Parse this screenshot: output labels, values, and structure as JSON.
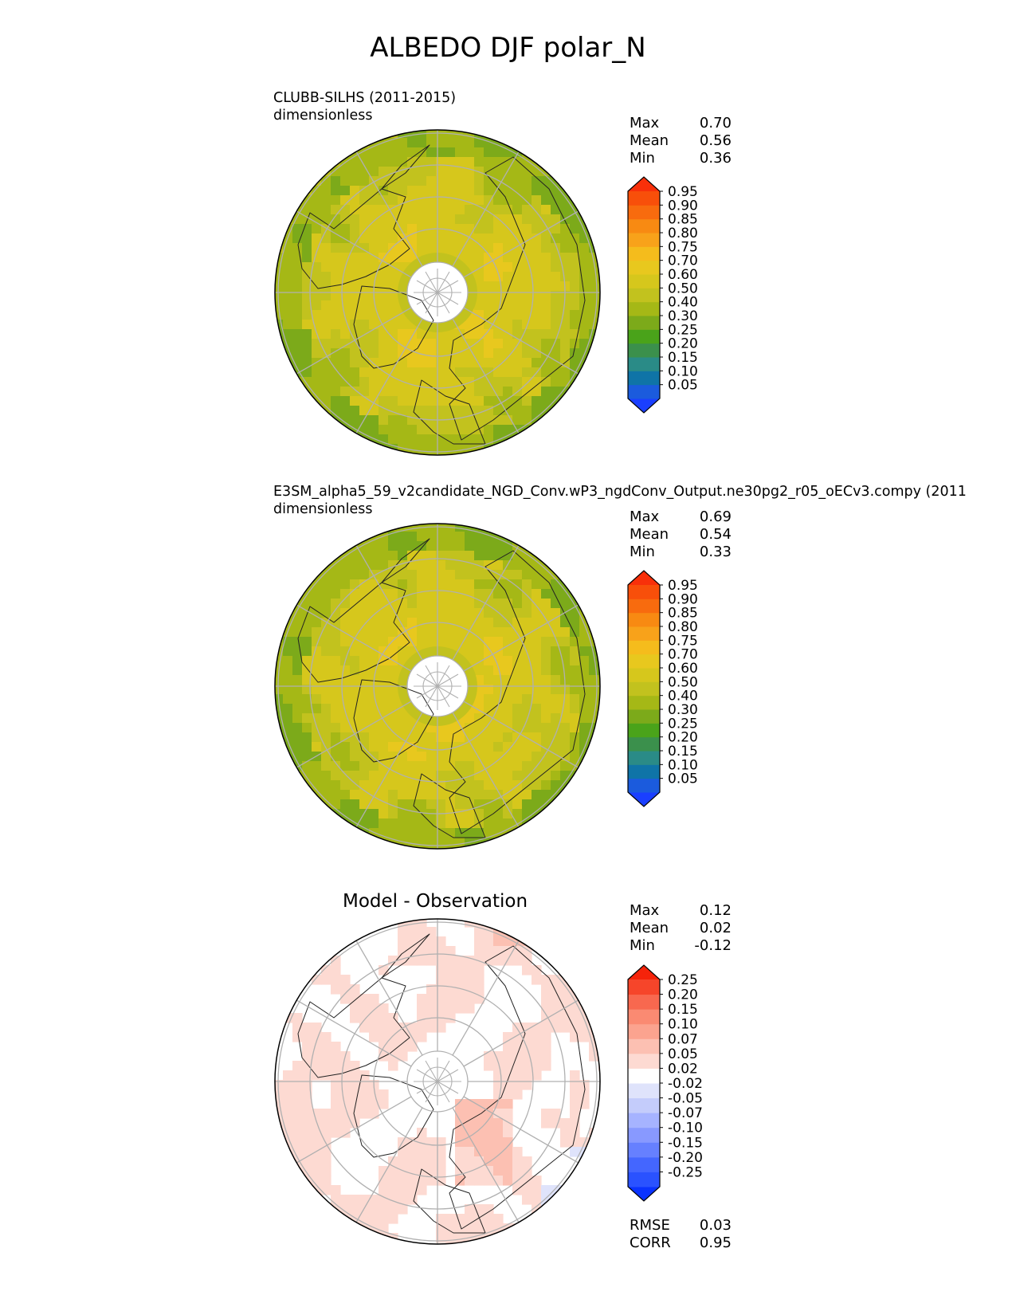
{
  "figure_title": "ALBEDO DJF polar_N",
  "colors": {
    "test_levels": [
      "#1a3fff",
      "#1b5bdd",
      "#0f74a7",
      "#2a8b87",
      "#3b904c",
      "#4aa31a",
      "#7caa1a",
      "#a5b816",
      "#c2c21e",
      "#d6c71c",
      "#e8c81e",
      "#f5bc1c",
      "#f8a21a",
      "#f88a12",
      "#f86b0e",
      "#f84f0a",
      "#f8300a"
    ],
    "diff_levels": [
      "#0a33ff",
      "#2a52ff",
      "#4466ff",
      "#6680ff",
      "#8899ff",
      "#a6b3ff",
      "#c4ccfb",
      "#dfe3fb",
      "#ffffff",
      "#fddad2",
      "#fcc0b2",
      "#fba38f",
      "#fa8a72",
      "#f8684f",
      "#f6452a",
      "#f5230a"
    ],
    "land_outline": "#222222",
    "grid": "#b0b0b0"
  },
  "chart_data": [
    {
      "type": "heatmap",
      "projection": "north-polar-stereographic",
      "left_title": "CLUBB-SILHS (2011-2015)",
      "units": "dimensionless",
      "stats": {
        "max_label": "Max",
        "max": "0.70",
        "mean_label": "Mean",
        "mean": "0.56",
        "min_label": "Min",
        "min": "0.36"
      },
      "colorbar": {
        "ticks": [
          "0.05",
          "0.10",
          "0.15",
          "0.20",
          "0.25",
          "0.30",
          "0.40",
          "0.50",
          "0.60",
          "0.70",
          "0.75",
          "0.80",
          "0.85",
          "0.90",
          "0.95"
        ],
        "extend": "both"
      }
    },
    {
      "type": "heatmap",
      "projection": "north-polar-stereographic",
      "left_title": "E3SM_alpha5_59_v2candidate_NGD_Conv.wP3_ngdConv_Output.ne30pg2_r05_oECv3.compy (2011",
      "units": "dimensionless",
      "stats": {
        "max_label": "Max",
        "max": "0.69",
        "mean_label": "Mean",
        "mean": "0.54",
        "min_label": "Min",
        "min": "0.33"
      },
      "colorbar": {
        "ticks": [
          "0.05",
          "0.10",
          "0.15",
          "0.20",
          "0.25",
          "0.30",
          "0.40",
          "0.50",
          "0.60",
          "0.70",
          "0.75",
          "0.80",
          "0.85",
          "0.90",
          "0.95"
        ],
        "extend": "both"
      }
    },
    {
      "type": "heatmap",
      "projection": "north-polar-stereographic",
      "center_title": "Model - Observation",
      "stats": {
        "max_label": "Max",
        "max": "0.12",
        "mean_label": "Mean",
        "mean": "0.02",
        "min_label": "Min",
        "min": "-0.12"
      },
      "colorbar": {
        "ticks": [
          "-0.25",
          "-0.20",
          "-0.15",
          "-0.10",
          "-0.07",
          "-0.05",
          "-0.02",
          "0.02",
          "0.05",
          "0.07",
          "0.10",
          "0.15",
          "0.20",
          "0.25"
        ],
        "extend": "both"
      },
      "metrics": {
        "rmse_label": "RMSE",
        "rmse": "0.03",
        "corr_label": "CORR",
        "corr": "0.95"
      }
    }
  ]
}
